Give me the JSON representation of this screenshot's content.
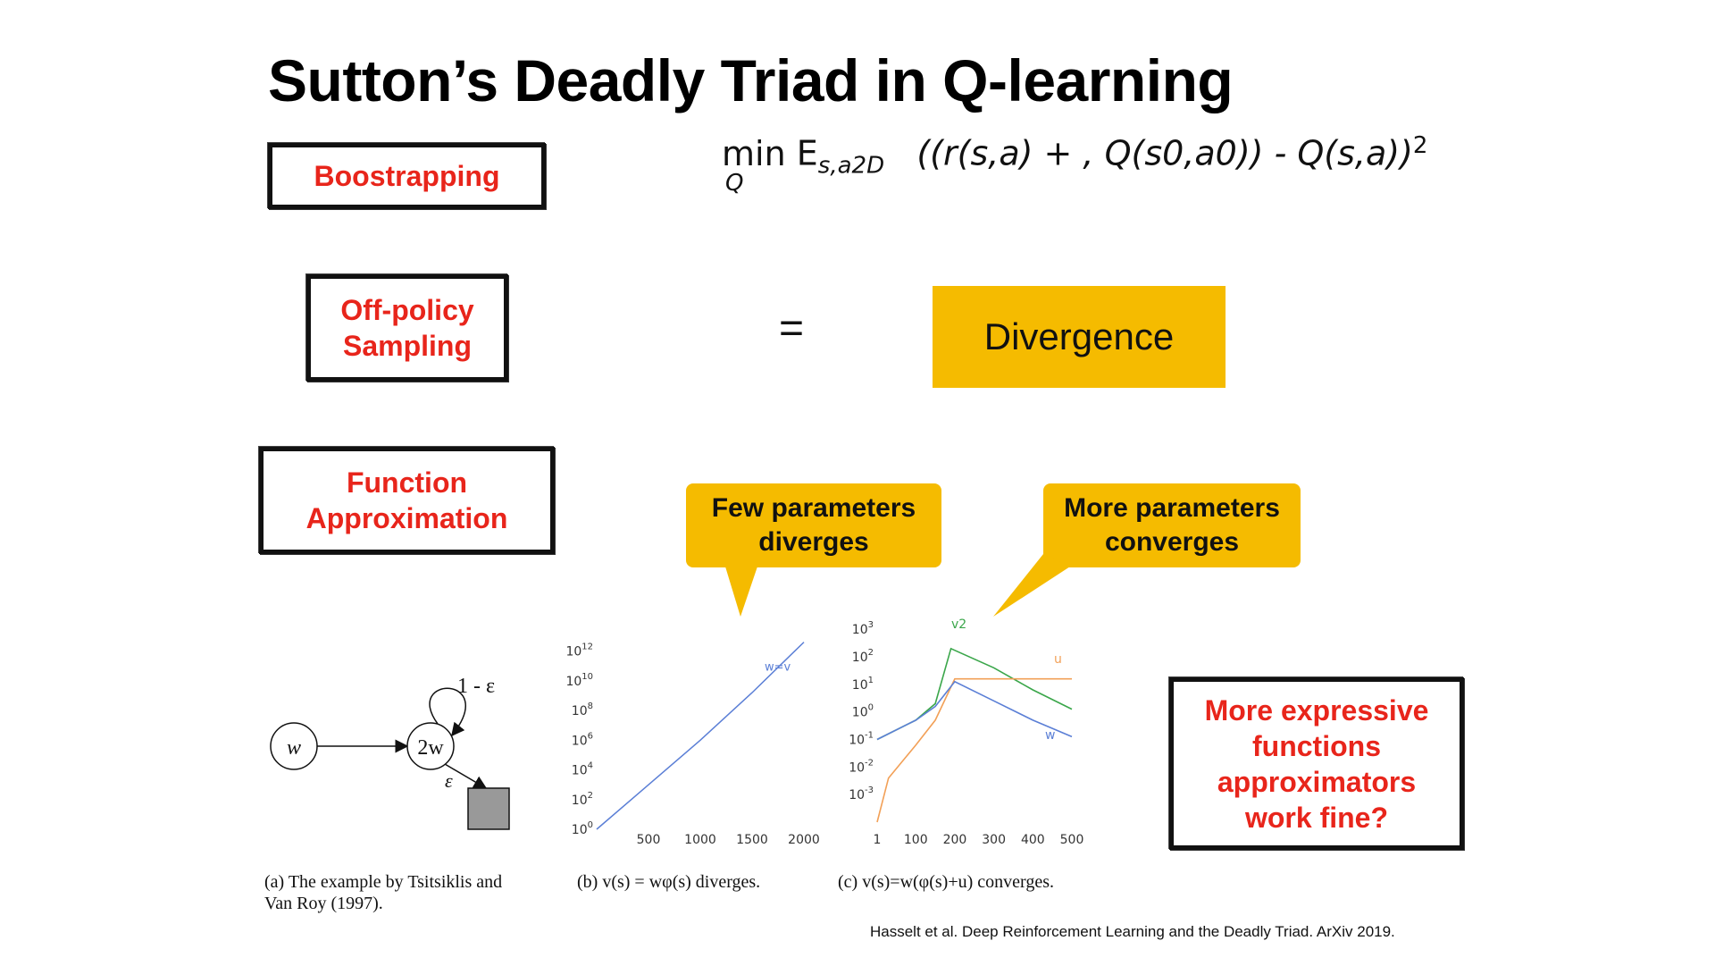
{
  "slide": {
    "title": "Sutton’s Deadly Triad in Q-learning",
    "boxes": {
      "bootstrapping": "Boostrapping",
      "off_policy_line1": "Off-policy",
      "off_policy_line2": "Sampling",
      "function_line1": "Function",
      "function_line2": "Approximation",
      "expressive_line1": "More expressive",
      "expressive_line2": "functions",
      "expressive_line3": "approximators",
      "expressive_line4": "work fine?"
    },
    "equals": "=",
    "result": "Divergence",
    "formula": {
      "min": "min",
      "min_sub": "Q",
      "E": "E",
      "E_sub": "s,a2D",
      "body": "((r(s,a) + , Q(s0,a0)) - Q(s,a))",
      "power": "2"
    },
    "callouts": {
      "few_line1": "Few parameters",
      "few_line2": "diverges",
      "more_line1": "More parameters",
      "more_line2": "converges"
    },
    "diagram": {
      "node_w": "w",
      "node_2w": "2w",
      "loop_label": "1 - ε",
      "eps_label": "ε"
    },
    "captions": {
      "a_line1": "(a)  The example by Tsitsiklis and",
      "a_line2": "Van Roy (1997).",
      "b": "(b)  v(s) = wφ(s) diverges.",
      "c": "(c)  v(s)=w(φ(s)+u) converges."
    },
    "credit": "Hasselt et al. Deep Reinforcement Learning and the Deadly Triad. ArXiv 2019.",
    "colors": {
      "accent_yellow": "#f5bb00",
      "label_red": "#e8251b"
    }
  },
  "chart_data": [
    {
      "type": "line",
      "yscale": "log",
      "yticks": [
        "10^0",
        "10^2",
        "10^4",
        "10^6",
        "10^8",
        "10^10",
        "10^12"
      ],
      "xticks": [
        500,
        1000,
        1500,
        2000
      ],
      "series": [
        {
          "name": "w=v",
          "color": "#5b7fd6",
          "points": [
            [
              0,
              0
            ],
            [
              500,
              3
            ],
            [
              1000,
              6
            ],
            [
              1500,
              9.2
            ],
            [
              2000,
              12.6
            ]
          ]
        }
      ]
    },
    {
      "type": "line",
      "yscale": "log",
      "yticks": [
        "10^-3",
        "10^-2",
        "10^-1",
        "10^0",
        "10^1",
        "10^2",
        "10^3"
      ],
      "xticks": [
        1,
        100,
        200,
        300,
        400,
        500
      ],
      "series": [
        {
          "name": "v2",
          "color": "#3aa64a",
          "points": [
            [
              1,
              -1
            ],
            [
              100,
              -0.3
            ],
            [
              150,
              0.3
            ],
            [
              190,
              2.3
            ],
            [
              300,
              1.6
            ],
            [
              400,
              0.8
            ],
            [
              500,
              0.1
            ]
          ]
        },
        {
          "name": "u",
          "color": "#f2a057",
          "points": [
            [
              1,
              -4
            ],
            [
              30,
              -2.4
            ],
            [
              100,
              -1.2
            ],
            [
              150,
              -0.3
            ],
            [
              200,
              1.2
            ],
            [
              300,
              1.2
            ],
            [
              400,
              1.2
            ],
            [
              500,
              1.2
            ]
          ]
        },
        {
          "name": "w",
          "color": "#5b7fd6",
          "points": [
            [
              1,
              -1
            ],
            [
              100,
              -0.3
            ],
            [
              150,
              0.2
            ],
            [
              200,
              1.1
            ],
            [
              300,
              0.4
            ],
            [
              400,
              -0.3
            ],
            [
              500,
              -0.9
            ]
          ]
        }
      ]
    }
  ]
}
